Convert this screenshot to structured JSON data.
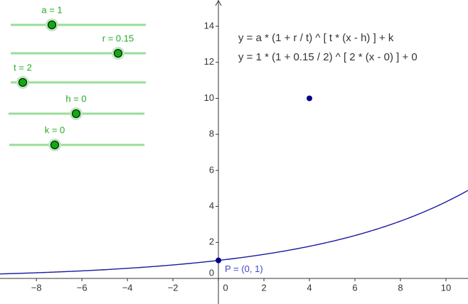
{
  "sliders": [
    {
      "label": "a = 1",
      "value": 1
    },
    {
      "label": "r = 0.15",
      "value": 0.15
    },
    {
      "label": "t = 2",
      "value": 2
    },
    {
      "label": "h = 0",
      "value": 0
    },
    {
      "label": "k = 0",
      "value": 0
    }
  ],
  "equations": [
    "y = a * (1 + r / t) ^ [ t * (x - h) ]  +  k",
    "y = 1 * (1 +  0.15 / 2) ^ [ 2 * (x - 0) ] + 0"
  ],
  "graph": {
    "xlim": [
      -9.6,
      10.97
    ],
    "ylim": [
      -1.42,
      15.46
    ],
    "xticks": [
      {
        "value": -8,
        "label": "−8"
      },
      {
        "value": -6,
        "label": "−6"
      },
      {
        "value": -4,
        "label": "−4"
      },
      {
        "value": -2,
        "label": "−2"
      },
      0,
      2,
      4,
      6,
      8,
      10
    ],
    "yticks": [
      0,
      2,
      4,
      6,
      8,
      10,
      12,
      14
    ],
    "points": [
      {
        "x": 0,
        "y": 1,
        "label": "P = (0, 1)"
      },
      {
        "x": 4,
        "y": 10
      }
    ]
  }
}
